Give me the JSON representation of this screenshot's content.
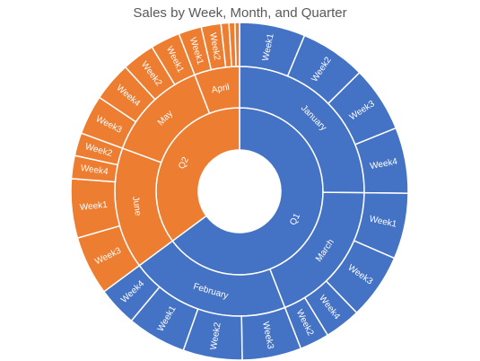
{
  "chart_data": {
    "type": "sunburst",
    "title": "Sales by Week, Month, and Quarter",
    "colors": {
      "Q1": "#4472C4",
      "Q2": "#ED7D31"
    },
    "hierarchy": [
      {
        "name": "Q1",
        "children": [
          {
            "name": "January",
            "children": [
              {
                "name": "Week1",
                "value": 1
              },
              {
                "name": "Week2",
                "value": 1
              },
              {
                "name": "Week3",
                "value": 1
              },
              {
                "name": "Week4",
                "value": 1
              }
            ]
          },
          {
            "name": "March",
            "children": [
              {
                "name": "Week1",
                "value": 1
              },
              {
                "name": "Week3",
                "value": 1
              },
              {
                "name": "Week4",
                "value": 0.55
              },
              {
                "name": "Week2",
                "value": 0.45
              }
            ]
          },
          {
            "name": "February",
            "children": [
              {
                "name": "Week3",
                "value": 0.9
              },
              {
                "name": "Week2",
                "value": 0.9
              },
              {
                "name": "Week1",
                "value": 0.9
              },
              {
                "name": "Week4",
                "value": 0.6
              }
            ]
          }
        ]
      },
      {
        "name": "Q2",
        "children": [
          {
            "name": "June",
            "children": [
              {
                "name": "Week3",
                "value": 0.9
              },
              {
                "name": "Week1",
                "value": 0.9
              },
              {
                "name": "Week4",
                "value": 0.35
              },
              {
                "name": "Week2",
                "value": 0.35
              }
            ]
          },
          {
            "name": "May",
            "children": [
              {
                "name": "Week3",
                "value": 0.6
              },
              {
                "name": "Week4",
                "value": 0.6
              },
              {
                "name": "Week2",
                "value": 0.5
              },
              {
                "name": "Week1",
                "value": 0.45
              }
            ]
          },
          {
            "name": "April",
            "children": [
              {
                "name": "Week1",
                "value": 0.35
              },
              {
                "name": "Week2",
                "value": 0.3
              },
              {
                "name": "",
                "value": 0.12
              },
              {
                "name": "",
                "value": 0.09
              },
              {
                "name": "",
                "value": 0.07
              }
            ]
          }
        ]
      }
    ]
  }
}
